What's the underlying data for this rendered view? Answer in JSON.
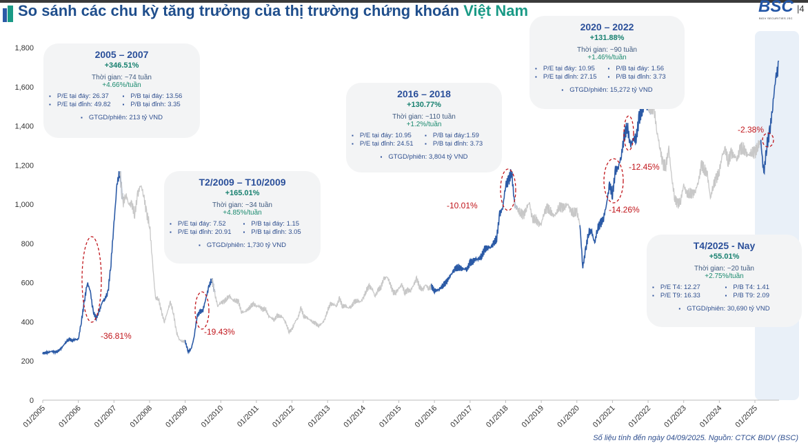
{
  "header": {
    "title_main": "So sánh các chu kỳ tăng trưởng của thị trường chứng khoán",
    "title_highlight": "Việt Nam",
    "logo": "BSC",
    "logo_sub": "BIDV SECURITIES JSC",
    "page_number": "4"
  },
  "footnote": "Số liệu tính đến ngày 04/09/2025. Nguồn: CTCK BIDV (BSC)",
  "colors": {
    "highlight": "#2b5aa6",
    "base": "#c8c8c8",
    "drawdown": "#c0141a",
    "title": "#1f4e8c",
    "accent": "#1a9a86",
    "shade": "#e9f0f8"
  },
  "chart_data": {
    "type": "line",
    "ylim": [
      0,
      1800
    ],
    "yticks": [
      "0",
      "200",
      "400",
      "600",
      "800",
      "1,000",
      "1,200",
      "1,400",
      "1,600",
      "1,800"
    ],
    "xticks": [
      "01/2005",
      "01/2006",
      "01/2007",
      "01/2008",
      "01/2009",
      "01/2010",
      "01/2011",
      "01/2012",
      "01/2013",
      "01/2014",
      "01/2015",
      "01/2016",
      "01/2017",
      "01/2018",
      "01/2019",
      "01/2020",
      "01/2021",
      "01/2022",
      "01/2023",
      "01/2024",
      "01/2025"
    ],
    "grid": false,
    "monthly": {
      "2005": [
        240,
        240,
        245,
        250,
        245,
        250,
        260,
        280,
        300,
        310,
        305,
        310
      ],
      "2006": [
        310,
        400,
        500,
        600,
        560,
        450,
        420,
        450,
        500,
        520,
        550,
        700
      ],
      "2007": [
        900,
        1100,
        1170,
        1000,
        1050,
        1000,
        1000,
        950,
        1050,
        1100,
        1050,
        950
      ],
      "2008": [
        900,
        700,
        520,
        520,
        450,
        400,
        450,
        500,
        450,
        350,
        310,
        300
      ],
      "2009": [
        300,
        250,
        260,
        320,
        430,
        450,
        460,
        520,
        580,
        620,
        540,
        480
      ],
      "2010": [
        500,
        500,
        520,
        530,
        510,
        510,
        500,
        450,
        450,
        460,
        480,
        490
      ],
      "2011": [
        480,
        480,
        460,
        470,
        430,
        420,
        410,
        430,
        430,
        420,
        390,
        350
      ],
      "2012": [
        360,
        400,
        420,
        470,
        430,
        420,
        410,
        400,
        390,
        380,
        390,
        410
      ],
      "2013": [
        460,
        490,
        490,
        480,
        520,
        480,
        480,
        470,
        480,
        500,
        510,
        500
      ],
      "2014": [
        520,
        560,
        580,
        570,
        530,
        560,
        580,
        620,
        630,
        600,
        550,
        550
      ],
      "2015": [
        570,
        590,
        550,
        560,
        560,
        590,
        620,
        580,
        560,
        590,
        570,
        580
      ],
      "2016": [
        560,
        560,
        570,
        590,
        600,
        630,
        650,
        670,
        680,
        670,
        670,
        670
      ],
      "2017": [
        700,
        710,
        720,
        720,
        740,
        770,
        780,
        780,
        800,
        830,
        950,
        980
      ],
      "2018": [
        1100,
        1120,
        1170,
        1000,
        970,
        960,
        940,
        980,
        1010,
        920,
        930,
        900
      ],
      "2019": [
        900,
        960,
        980,
        970,
        940,
        950,
        990,
        980,
        990,
        1000,
        960,
        960
      ],
      "2020": [
        960,
        900,
        680,
        770,
        860,
        860,
        800,
        880,
        900,
        930,
        1000,
        1100
      ],
      "2021": [
        1050,
        1170,
        1190,
        1250,
        1350,
        1400,
        1300,
        1330,
        1340,
        1440,
        1480,
        1500
      ],
      "2022": [
        1500,
        1500,
        1490,
        1370,
        1290,
        1200,
        1200,
        1280,
        1130,
        1030,
        1000,
        1020
      ],
      "2023": [
        1100,
        1050,
        1060,
        1050,
        1070,
        1120,
        1200,
        1180,
        1150,
        1030,
        1100,
        1130
      ],
      "2024": [
        1170,
        1250,
        1280,
        1220,
        1260,
        1250,
        1230,
        1280,
        1290,
        1260,
        1250,
        1270
      ],
      "2025": [
        1260,
        1300,
        1320,
        1150,
        1300,
        1370,
        1500,
        1650,
        1700
      ]
    },
    "highlight_periods": [
      [
        "2005-01",
        "2007-03"
      ],
      [
        "2009-02",
        "2009-10"
      ],
      [
        "2016-01",
        "2018-04"
      ],
      [
        "2020-03",
        "2022-01"
      ],
      [
        "2025-04",
        "2025-09"
      ]
    ],
    "drawdowns": [
      "-36.81%",
      "-19.43%",
      "-10.01%",
      "-14.26%",
      "-12.45%",
      "-2.38%"
    ]
  },
  "cycles": [
    {
      "title": "2005 – 2007",
      "gain": "+346.51%",
      "duration": "Thời gian: ~74 tuần",
      "weekly": "+4.66%/tuần",
      "stats": [
        "P/E tại đáy: 26.37",
        "P/B tại đáy: 13.56",
        "P/E tại đỉnh: 49.82",
        "P/B tại đỉnh: 3.35"
      ],
      "volume": "GTGD/phiên: 213 tỷ VND"
    },
    {
      "title": "T2/2009 – T10/2009",
      "gain": "+165.01%",
      "duration": "Thời gian: ~34 tuần",
      "weekly": "+4.85%/tuần",
      "stats": [
        "P/E tại đáy: 7.52",
        "P/B tại đáy: 1.15",
        "P/E tại đỉnh: 20.91",
        "P/B tại đỉnh: 3.05"
      ],
      "volume": "GTGD/phiên: 1,730 tỷ VND"
    },
    {
      "title": "2016 – 2018",
      "gain": "+130.77%",
      "duration": "Thời gian: ~110 tuần",
      "weekly": "+1.2%/tuần",
      "stats": [
        "P/E tại đáy: 10.95",
        "P/B tại đáy:1.59",
        "P/E tại đỉnh: 24.51",
        "P/B tại đỉnh: 3.73"
      ],
      "volume": "GTGD/phiên: 3,804 tỷ VND"
    },
    {
      "title": "2020 – 2022",
      "gain": "+131.88%",
      "duration": "Thời gian: ~90 tuần",
      "weekly": "+1.46%/tuần",
      "stats": [
        "P/E tại đáy: 10.95",
        "P/B tại đáy: 1.56",
        "P/E tại đỉnh: 27.15",
        "P/B tại đỉnh: 3.73"
      ],
      "volume": "GTGD/phiên: 15,272 tỷ VND"
    },
    {
      "title": "T4/2025 - Nay",
      "gain": "+55.01%",
      "duration": "Thời gian: ~20 tuần",
      "weekly": "+2.75%/tuần",
      "stats": [
        "P/E T4: 12.27",
        "P/B T4: 1.41",
        "P/E T9: 16.33",
        "P/B T9: 2.09"
      ],
      "volume": "GTGD/phiên: 30,690 tỷ VND"
    }
  ]
}
